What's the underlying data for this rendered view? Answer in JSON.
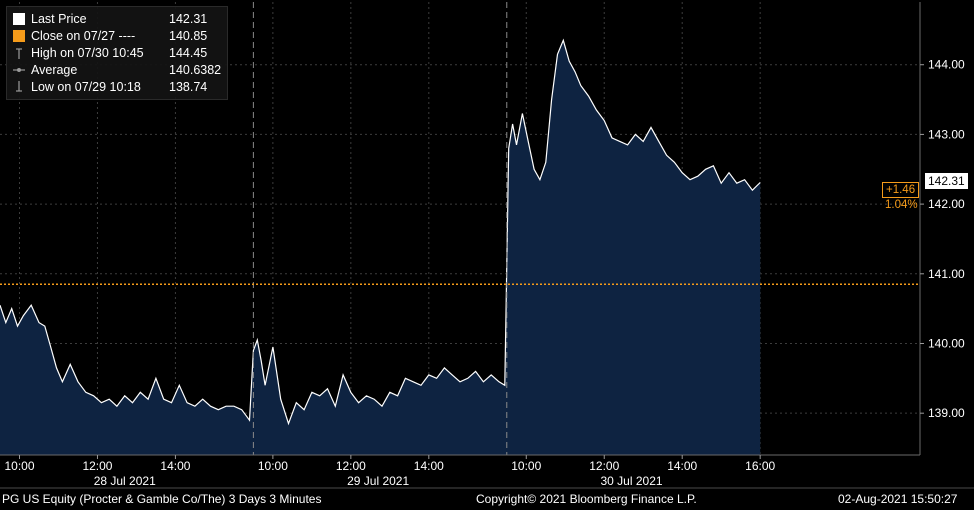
{
  "legend": {
    "items": [
      {
        "label": "Last Price",
        "value": "142.31",
        "icon": "white-square-icon",
        "color": "#ffffff"
      },
      {
        "label": "Close on 07/27  ----",
        "value": "140.85",
        "icon": "orange-square-icon",
        "color": "#f59b1a"
      },
      {
        "label": "High on 07/30 10:45",
        "value": "144.45",
        "icon": "high-marker-icon",
        "color": "#9a9a9a"
      },
      {
        "label": "Average",
        "value": "140.6382",
        "icon": "average-marker-icon",
        "color": "#9a9a9a"
      },
      {
        "label": "Low on 07/29 10:18",
        "value": "138.74",
        "icon": "low-marker-icon",
        "color": "#9a9a9a"
      }
    ]
  },
  "badges": {
    "last_price": "142.31",
    "change_abs": "+1.46",
    "change_pct": "1.04%"
  },
  "footer": {
    "left": "PG US Equity (Procter & Gamble Co/The) 3 Days 3 Minutes",
    "center": "Copyright© 2021 Bloomberg Finance L.P.",
    "right": "02-Aug-2021 15:50:27"
  },
  "colors": {
    "background": "#000000",
    "area_fill": "#0e2341",
    "line": "#ffffff",
    "reference": "#f59b1a",
    "grid": "#3c3c3c",
    "axis_text": "#ffffff"
  },
  "chart_data": {
    "type": "area",
    "title": "",
    "xlabel": "",
    "ylabel": "",
    "ylim": [
      138.4,
      144.9
    ],
    "xlim": [
      0.0,
      25.0
    ],
    "yticks": [
      139.0,
      140.0,
      141.0,
      142.0,
      143.0,
      144.0
    ],
    "ytick_labels": [
      "139.00",
      "140.00",
      "141.00",
      "142.00",
      "143.00",
      "144.00"
    ],
    "xticks": [
      {
        "x": 0.5,
        "label": "10:00"
      },
      {
        "x": 2.5,
        "label": "12:00"
      },
      {
        "x": 4.5,
        "label": "14:00"
      },
      {
        "x": 7.0,
        "label": "10:00"
      },
      {
        "x": 9.0,
        "label": "12:00"
      },
      {
        "x": 11.0,
        "label": "14:00"
      },
      {
        "x": 13.5,
        "label": "10:00"
      },
      {
        "x": 15.5,
        "label": "12:00"
      },
      {
        "x": 17.5,
        "label": "14:00"
      },
      {
        "x": 19.5,
        "label": "16:00"
      }
    ],
    "day_labels": [
      {
        "x": 3.2,
        "label": "28 Jul 2021"
      },
      {
        "x": 9.7,
        "label": "29 Jul 2021"
      },
      {
        "x": 16.2,
        "label": "30 Jul 2021"
      }
    ],
    "session_breaks": [
      6.5,
      13.0
    ],
    "reference_line": {
      "label": "Close on 07/27",
      "value": 140.85
    },
    "grid": true,
    "legend_position": "top-left",
    "series": [
      {
        "x": [
          0.0,
          0.15,
          0.3,
          0.45,
          0.6,
          0.8,
          1.0,
          1.15,
          1.3,
          1.45,
          1.6,
          1.8,
          2.0,
          2.2,
          2.4,
          2.6,
          2.8,
          3.0,
          3.2,
          3.4,
          3.6,
          3.8,
          4.0,
          4.2,
          4.4,
          4.6,
          4.8,
          5.0,
          5.2,
          5.4,
          5.6,
          5.8,
          6.0,
          6.2,
          6.4,
          6.5,
          6.6,
          6.7,
          6.8,
          7.0,
          7.2,
          7.4,
          7.6,
          7.8,
          8.0,
          8.2,
          8.4,
          8.6,
          8.8,
          9.0,
          9.2,
          9.4,
          9.6,
          9.8,
          10.0,
          10.2,
          10.4,
          10.6,
          10.8,
          11.0,
          11.2,
          11.4,
          11.6,
          11.8,
          12.0,
          12.2,
          12.4,
          12.6,
          12.8,
          12.95,
          13.05,
          13.15,
          13.25,
          13.4,
          13.55,
          13.7,
          13.85,
          14.0,
          14.15,
          14.3,
          14.45,
          14.6,
          14.75,
          14.9,
          15.1,
          15.3,
          15.5,
          15.7,
          15.9,
          16.1,
          16.3,
          16.5,
          16.7,
          16.9,
          17.1,
          17.3,
          17.5,
          17.7,
          17.9,
          18.1,
          18.3,
          18.5,
          18.7,
          18.9,
          19.1,
          19.3,
          19.5
        ],
        "y": [
          140.55,
          140.3,
          140.5,
          140.25,
          140.4,
          140.55,
          140.3,
          140.25,
          139.95,
          139.65,
          139.45,
          139.7,
          139.45,
          139.3,
          139.25,
          139.15,
          139.2,
          139.1,
          139.25,
          139.15,
          139.3,
          139.2,
          139.5,
          139.2,
          139.15,
          139.4,
          139.15,
          139.1,
          139.2,
          139.1,
          139.05,
          139.1,
          139.1,
          139.05,
          138.9,
          139.9,
          140.05,
          139.75,
          139.4,
          139.95,
          139.2,
          138.85,
          139.15,
          139.05,
          139.3,
          139.25,
          139.35,
          139.1,
          139.55,
          139.3,
          139.15,
          139.25,
          139.2,
          139.1,
          139.3,
          139.25,
          139.5,
          139.45,
          139.4,
          139.55,
          139.5,
          139.65,
          139.55,
          139.45,
          139.5,
          139.6,
          139.45,
          139.55,
          139.45,
          139.4,
          142.8,
          143.15,
          142.85,
          143.3,
          142.9,
          142.5,
          142.35,
          142.6,
          143.5,
          144.15,
          144.35,
          144.05,
          143.9,
          143.7,
          143.55,
          143.35,
          143.2,
          142.95,
          142.9,
          142.85,
          143.0,
          142.9,
          143.1,
          142.9,
          142.7,
          142.6,
          142.45,
          142.35,
          142.4,
          142.5,
          142.55,
          142.3,
          142.45,
          142.3,
          142.35,
          142.2,
          142.31
        ]
      }
    ]
  }
}
